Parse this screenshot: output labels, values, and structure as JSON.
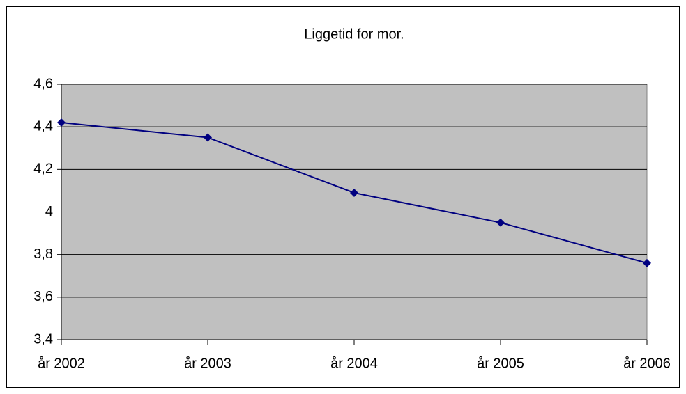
{
  "chart_data": {
    "type": "line",
    "title": "Liggetid for mor.",
    "categories": [
      "år 2002",
      "år 2003",
      "år 2004",
      "år 2005",
      "år 2006"
    ],
    "series": [
      {
        "name": "Liggetid for mor.",
        "color": "#000080",
        "values": [
          4.42,
          4.35,
          4.09,
          3.95,
          3.76
        ]
      }
    ],
    "ylim": [
      3.4,
      4.6
    ],
    "yticks": [
      {
        "value": 3.4,
        "label": "3,4"
      },
      {
        "value": 3.6,
        "label": "3,6"
      },
      {
        "value": 3.8,
        "label": "3,8"
      },
      4,
      {
        "value": 4.2,
        "label": "4,2"
      },
      {
        "value": 4.4,
        "label": "4,4"
      },
      {
        "value": 4.6,
        "label": "4,6"
      }
    ],
    "grid": true,
    "plot_background": "#c0c0c0"
  }
}
